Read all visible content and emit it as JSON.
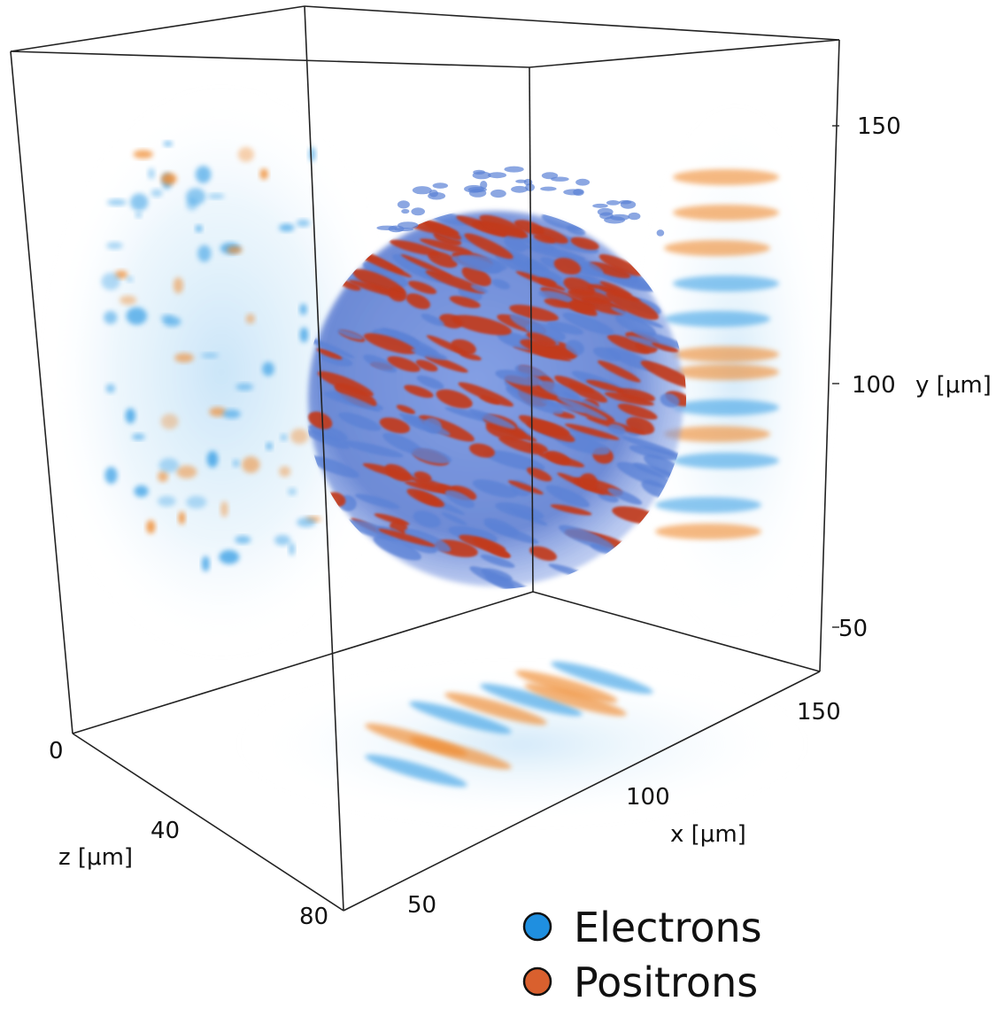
{
  "figure": {
    "axes": {
      "x": {
        "label": "x [μm]",
        "ticks": [
          "50",
          "100",
          "150"
        ]
      },
      "y": {
        "label": "y [μm]",
        "ticks": [
          "150",
          "100",
          "50"
        ]
      },
      "z": {
        "label": "z [μm]",
        "ticks": [
          "0",
          "40",
          "80"
        ]
      }
    },
    "legend": [
      {
        "label": "Electrons",
        "color": "#1f8fe0"
      },
      {
        "label": "Positrons",
        "color": "#d9602e"
      }
    ],
    "colors": {
      "electron_surface": "#5b82d6",
      "positron_surface": "#c23a1f",
      "electron_projection": "#3fa3e6",
      "positron_projection": "#f08a2e"
    }
  }
}
